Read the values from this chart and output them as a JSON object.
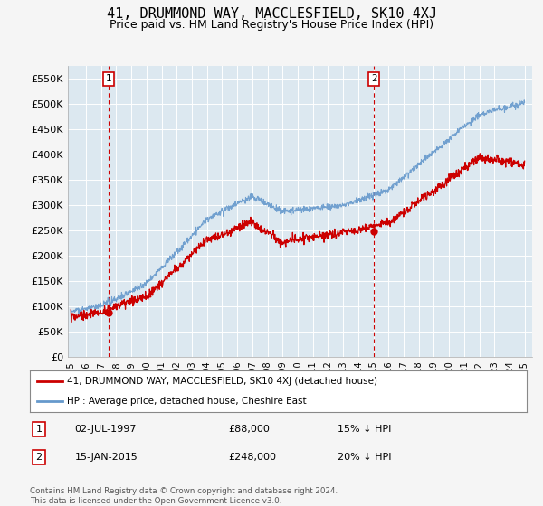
{
  "title": "41, DRUMMOND WAY, MACCLESFIELD, SK10 4XJ",
  "subtitle": "Price paid vs. HM Land Registry's House Price Index (HPI)",
  "ylabel_ticks": [
    "£0",
    "£50K",
    "£100K",
    "£150K",
    "£200K",
    "£250K",
    "£300K",
    "£350K",
    "£400K",
    "£450K",
    "£500K",
    "£550K"
  ],
  "ytick_values": [
    0,
    50000,
    100000,
    150000,
    200000,
    250000,
    300000,
    350000,
    400000,
    450000,
    500000,
    550000
  ],
  "ylim": [
    0,
    575000
  ],
  "xlim_start": 1994.8,
  "xlim_end": 2025.5,
  "hpi_color": "#6699cc",
  "price_color": "#cc0000",
  "marker1_date": 1997.5,
  "marker1_price": 88000,
  "marker2_date": 2015.04,
  "marker2_price": 248000,
  "annotation1_label": "1",
  "annotation2_label": "2",
  "legend_line1": "41, DRUMMOND WAY, MACCLESFIELD, SK10 4XJ (detached house)",
  "legend_line2": "HPI: Average price, detached house, Cheshire East",
  "table_row1": [
    "1",
    "02-JUL-1997",
    "£88,000",
    "15% ↓ HPI"
  ],
  "table_row2": [
    "2",
    "15-JAN-2015",
    "£248,000",
    "20% ↓ HPI"
  ],
  "footer": "Contains HM Land Registry data © Crown copyright and database right 2024.\nThis data is licensed under the Open Government Licence v3.0.",
  "background_color": "#f5f5f5",
  "plot_bg_color": "#dce8f0",
  "grid_color": "#ffffff",
  "title_fontsize": 11,
  "subtitle_fontsize": 9,
  "tick_fontsize": 8
}
